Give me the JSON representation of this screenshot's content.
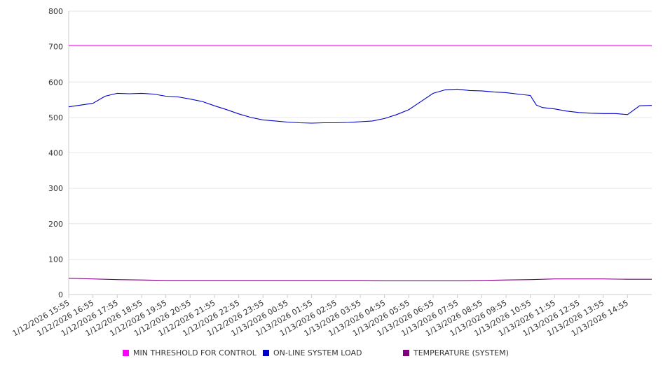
{
  "chart_data": {
    "type": "line",
    "title": "",
    "xlabel": "",
    "ylabel": "",
    "ylim": [
      0,
      800
    ],
    "yticks": [
      0,
      100,
      200,
      300,
      400,
      500,
      600,
      700,
      800
    ],
    "grid": true,
    "legend_position": "bottom",
    "x_ticks": [
      "1/12/2026 15:55",
      "1/12/2026 16:55",
      "1/12/2026 17:55",
      "1/12/2026 18:55",
      "1/12/2026 19:55",
      "1/12/2026 20:55",
      "1/12/2026 21:55",
      "1/12/2026 22:55",
      "1/12/2026 23:55",
      "1/13/2026 00:55",
      "1/13/2026 01:55",
      "1/13/2026 02:55",
      "1/13/2026 03:55",
      "1/13/2026 04:55",
      "1/13/2026 05:55",
      "1/13/2026 06:55",
      "1/13/2026 07:55",
      "1/13/2026 08:55",
      "1/13/2026 09:55",
      "1/13/2026 10:55",
      "1/13/2026 11:55",
      "1/13/2026 12:55",
      "1/13/2026 13:55",
      "1/13/2026 14:55"
    ],
    "series": [
      {
        "name": "MIN THRESHOLD FOR CONTROL",
        "color": "#ff00ff",
        "points": [
          [
            "1/12/2026 15:55",
            703
          ],
          [
            "1/13/2026 15:55",
            703
          ]
        ]
      },
      {
        "name": "ON-LINE SYSTEM LOAD",
        "color": "#0000cc",
        "points": [
          [
            "1/12/2026 15:55",
            530
          ],
          [
            "1/12/2026 16:25",
            535
          ],
          [
            "1/12/2026 16:55",
            540
          ],
          [
            "1/12/2026 17:25",
            560
          ],
          [
            "1/12/2026 17:55",
            568
          ],
          [
            "1/12/2026 18:25",
            567
          ],
          [
            "1/12/2026 18:55",
            568
          ],
          [
            "1/12/2026 19:25",
            566
          ],
          [
            "1/12/2026 19:55",
            560
          ],
          [
            "1/12/2026 20:25",
            558
          ],
          [
            "1/12/2026 20:55",
            552
          ],
          [
            "1/12/2026 21:25",
            545
          ],
          [
            "1/12/2026 21:55",
            533
          ],
          [
            "1/12/2026 22:25",
            522
          ],
          [
            "1/12/2026 22:55",
            510
          ],
          [
            "1/12/2026 23:25",
            500
          ],
          [
            "1/12/2026 23:55",
            493
          ],
          [
            "1/13/2026 00:25",
            490
          ],
          [
            "1/13/2026 00:55",
            487
          ],
          [
            "1/13/2026 01:25",
            485
          ],
          [
            "1/13/2026 01:55",
            484
          ],
          [
            "1/13/2026 02:25",
            485
          ],
          [
            "1/13/2026 02:55",
            485
          ],
          [
            "1/13/2026 03:25",
            486
          ],
          [
            "1/13/2026 03:55",
            488
          ],
          [
            "1/13/2026 04:25",
            490
          ],
          [
            "1/13/2026 04:55",
            497
          ],
          [
            "1/13/2026 05:25",
            508
          ],
          [
            "1/13/2026 05:55",
            522
          ],
          [
            "1/13/2026 06:25",
            545
          ],
          [
            "1/13/2026 06:55",
            568
          ],
          [
            "1/13/2026 07:25",
            578
          ],
          [
            "1/13/2026 07:55",
            580
          ],
          [
            "1/13/2026 08:25",
            576
          ],
          [
            "1/13/2026 08:55",
            575
          ],
          [
            "1/13/2026 09:25",
            572
          ],
          [
            "1/13/2026 09:55",
            570
          ],
          [
            "1/13/2026 10:25",
            566
          ],
          [
            "1/13/2026 10:55",
            562
          ],
          [
            "1/13/2026 11:10",
            535
          ],
          [
            "1/13/2026 11:25",
            528
          ],
          [
            "1/13/2026 11:55",
            524
          ],
          [
            "1/13/2026 12:25",
            518
          ],
          [
            "1/13/2026 12:55",
            514
          ],
          [
            "1/13/2026 13:25",
            512
          ],
          [
            "1/13/2026 13:55",
            511
          ],
          [
            "1/13/2026 14:25",
            511
          ],
          [
            "1/13/2026 14:55",
            508
          ],
          [
            "1/13/2026 15:25",
            533
          ],
          [
            "1/13/2026 15:55",
            534
          ]
        ]
      },
      {
        "name": "TEMPERATURE (SYSTEM)",
        "color": "#800080",
        "points": [
          [
            "1/12/2026 15:55",
            46
          ],
          [
            "1/12/2026 16:55",
            44
          ],
          [
            "1/12/2026 17:55",
            42
          ],
          [
            "1/12/2026 18:55",
            41
          ],
          [
            "1/12/2026 19:55",
            40
          ],
          [
            "1/12/2026 20:55",
            40
          ],
          [
            "1/12/2026 21:55",
            40
          ],
          [
            "1/12/2026 22:55",
            40
          ],
          [
            "1/12/2026 23:55",
            40
          ],
          [
            "1/13/2026 00:55",
            40
          ],
          [
            "1/13/2026 01:55",
            40
          ],
          [
            "1/13/2026 02:55",
            40
          ],
          [
            "1/13/2026 03:55",
            40
          ],
          [
            "1/13/2026 04:55",
            39
          ],
          [
            "1/13/2026 05:55",
            39
          ],
          [
            "1/13/2026 06:55",
            39
          ],
          [
            "1/13/2026 07:55",
            39
          ],
          [
            "1/13/2026 08:55",
            40
          ],
          [
            "1/13/2026 09:55",
            41
          ],
          [
            "1/13/2026 10:55",
            42
          ],
          [
            "1/13/2026 11:55",
            44
          ],
          [
            "1/13/2026 12:55",
            44
          ],
          [
            "1/13/2026 13:55",
            44
          ],
          [
            "1/13/2026 14:55",
            43
          ],
          [
            "1/13/2026 15:55",
            43
          ]
        ]
      }
    ]
  }
}
